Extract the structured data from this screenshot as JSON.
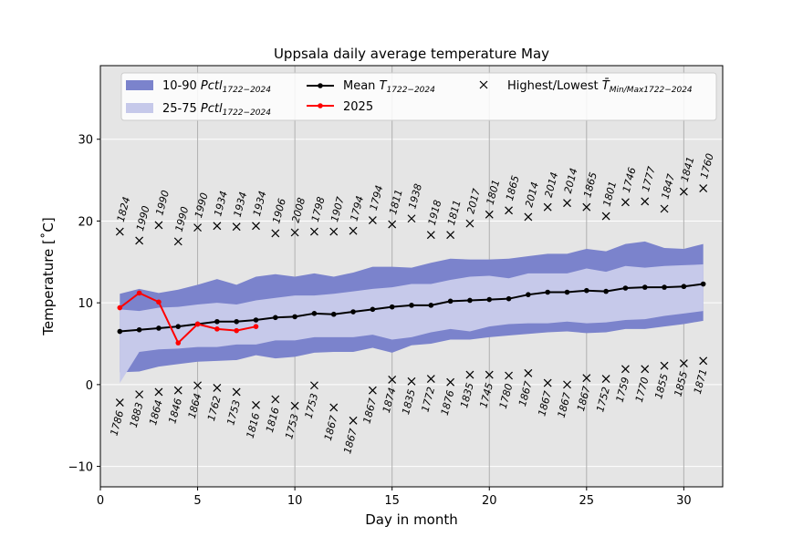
{
  "chart_data": {
    "type": "line",
    "title": "Uppsala daily average temperature May",
    "xlabel": "Day in month",
    "ylabel": "Temperature [$^\\circ$C]",
    "ylabel_display": "Temperature [˚C]",
    "xlim": [
      0,
      32
    ],
    "ylim": [
      -12.5,
      39
    ],
    "xticks": [
      0,
      5,
      10,
      15,
      20,
      25,
      30
    ],
    "yticks": [
      -10,
      0,
      10,
      20,
      30
    ],
    "vgrid_x": [
      5,
      10,
      15,
      20,
      25,
      30
    ],
    "hgrid_y": [
      -10,
      0,
      10,
      20,
      30
    ],
    "background": "#e5e5e5",
    "days": [
      1,
      2,
      3,
      4,
      5,
      6,
      7,
      8,
      9,
      10,
      11,
      12,
      13,
      14,
      15,
      16,
      17,
      18,
      19,
      20,
      21,
      22,
      23,
      24,
      25,
      26,
      27,
      28,
      29,
      30,
      31
    ],
    "band_10_90": {
      "low": [
        1.5,
        1.6,
        2.2,
        2.5,
        2.8,
        2.9,
        3.0,
        3.6,
        3.2,
        3.4,
        3.9,
        4.0,
        4.0,
        4.5,
        3.9,
        4.8,
        5.0,
        5.5,
        5.5,
        5.8,
        6.0,
        6.2,
        6.4,
        6.5,
        6.3,
        6.4,
        6.8,
        6.8,
        7.1,
        7.4,
        7.8
      ],
      "high": [
        11.1,
        11.7,
        11.2,
        11.6,
        12.2,
        12.9,
        12.2,
        13.2,
        13.5,
        13.2,
        13.6,
        13.2,
        13.7,
        14.4,
        14.4,
        14.3,
        14.9,
        15.4,
        15.3,
        15.3,
        15.4,
        15.7,
        16.0,
        16.0,
        16.6,
        16.3,
        17.2,
        17.5,
        16.7,
        16.6,
        17.2
      ]
    },
    "band_25_75": {
      "low": [
        0.2,
        4.0,
        4.3,
        4.4,
        4.6,
        4.6,
        4.9,
        4.9,
        5.4,
        5.4,
        5.8,
        5.8,
        5.8,
        6.1,
        5.5,
        5.8,
        6.4,
        6.8,
        6.5,
        7.1,
        7.4,
        7.5,
        7.5,
        7.7,
        7.5,
        7.6,
        7.9,
        8.0,
        8.4,
        8.7,
        9.0
      ],
      "high": [
        9.2,
        9.0,
        9.4,
        9.5,
        9.8,
        10.0,
        9.8,
        10.3,
        10.6,
        10.9,
        10.9,
        11.1,
        11.4,
        11.7,
        11.9,
        12.3,
        12.3,
        12.8,
        13.2,
        13.3,
        13.0,
        13.6,
        13.6,
        13.6,
        14.2,
        13.8,
        14.5,
        14.3,
        14.5,
        14.6,
        14.7
      ]
    },
    "series": [
      {
        "name": "Mean $T_{1722-2024}$",
        "color": "#000000",
        "values": [
          6.5,
          6.7,
          6.9,
          7.1,
          7.4,
          7.7,
          7.7,
          7.9,
          8.2,
          8.3,
          8.7,
          8.6,
          8.9,
          9.2,
          9.5,
          9.7,
          9.7,
          10.2,
          10.3,
          10.4,
          10.5,
          11.0,
          11.3,
          11.3,
          11.5,
          11.4,
          11.8,
          11.9,
          11.9,
          12.0,
          12.3
        ]
      },
      {
        "name": "2025",
        "color": "#ff0000",
        "x": [
          1,
          2,
          3,
          4,
          5,
          6,
          7,
          8
        ],
        "values": [
          9.4,
          11.2,
          10.1,
          5.1,
          7.4,
          6.8,
          6.6,
          7.1
        ]
      }
    ],
    "highest": {
      "values": [
        18.7,
        17.6,
        19.5,
        17.5,
        19.2,
        19.4,
        19.3,
        19.4,
        18.5,
        18.6,
        18.7,
        18.7,
        18.8,
        20.1,
        19.6,
        20.3,
        18.3,
        18.3,
        19.7,
        20.8,
        21.3,
        20.5,
        21.7,
        22.2,
        21.7,
        20.6,
        22.3,
        22.4,
        21.5,
        23.6,
        24.0
      ],
      "years": [
        "1824",
        "1990",
        "1990",
        "1990",
        "1990",
        "1934",
        "1934",
        "1934",
        "1906",
        "2008",
        "1798",
        "1907",
        "1794",
        "1794",
        "1811",
        "1938",
        "1918",
        "1811",
        "2017",
        "1801",
        "1865",
        "2014",
        "2014",
        "2014",
        "1865",
        "1801",
        "1746",
        "1777",
        "1847",
        "1841",
        "1760"
      ]
    },
    "lowest": {
      "values": [
        -2.2,
        -1.2,
        -0.9,
        -0.7,
        -0.1,
        -0.4,
        -0.9,
        -2.5,
        -1.8,
        -2.6,
        -0.1,
        -2.8,
        -4.4,
        -0.7,
        0.6,
        0.4,
        0.7,
        0.3,
        1.2,
        1.2,
        1.1,
        1.4,
        0.2,
        0.0,
        0.8,
        0.7,
        1.9,
        1.9,
        2.3,
        2.6,
        2.9
      ],
      "years": [
        "1786",
        "1883",
        "1864",
        "1846",
        "1864",
        "1762",
        "1753",
        "1816",
        "1816",
        "1753",
        "1753",
        "1867",
        "1867",
        "1867",
        "1874",
        "1835",
        "1772",
        "1876",
        "1835",
        "1745",
        "1780",
        "1867",
        "1867",
        "1867",
        "1867",
        "1752",
        "1759",
        "1770",
        "1855",
        "1855",
        "1871"
      ]
    },
    "legend": {
      "placement": "top",
      "band_10_90_label": "10-90 $Pctl_{1722-2024}$",
      "band_25_75_label": "25-75 $Pctl_{1722-2024}$",
      "mean_label": "Mean $T_{1722-2024}$",
      "current_label": "2025",
      "extremes_label": "Highest/Lowest $\\bar{T}_{Min/Max1722-2024}$",
      "band_10_90_text": "10-90 ",
      "band_10_90_italic": "Pctl",
      "band_10_90_sub": "1722−2024",
      "band_25_75_text": "25-75 ",
      "band_25_75_italic": "Pctl",
      "band_25_75_sub": "1722−2024",
      "mean_text": "Mean ",
      "mean_italic": "T",
      "mean_sub": "1722−2024",
      "current_text": "2025",
      "extremes_text": "Highest/Lowest ",
      "extremes_italic": "T̄",
      "extremes_sub": "Min/Max1722−2024"
    },
    "colors": {
      "band_10_90": "#7b83cc",
      "band_25_75": "#c6c9ea",
      "mean": "#000000",
      "current": "#ff0000",
      "extremes": "#000000"
    }
  }
}
